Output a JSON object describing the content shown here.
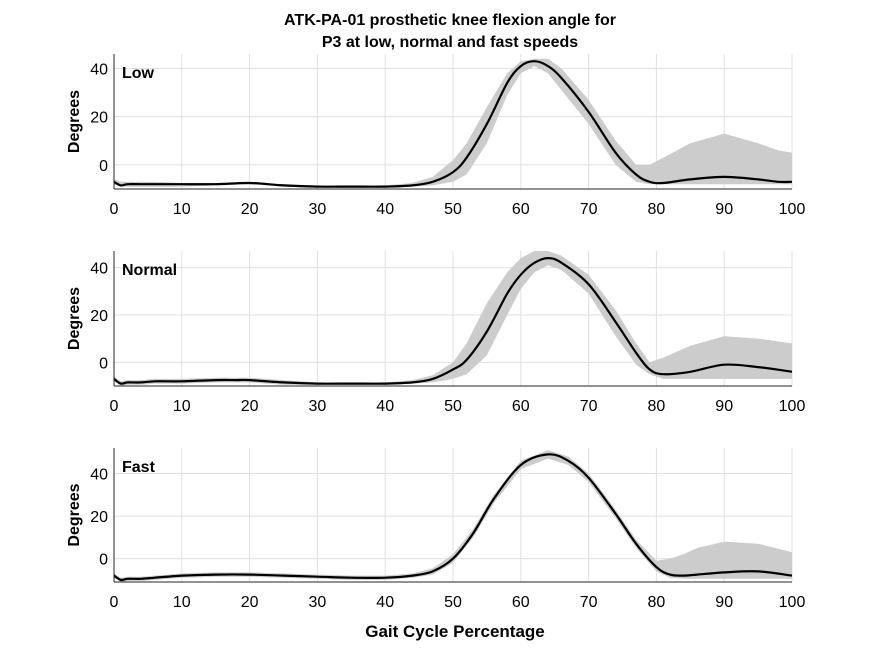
{
  "figure": {
    "title_lines": [
      "ATK-PA-01 prosthetic knee flexion angle for",
      "P3 at low, normal and fast speeds"
    ],
    "xlabel": "Gait Cycle Percentage"
  },
  "chart_data": [
    {
      "type": "line",
      "panel_label": "Low",
      "ylabel": "Degrees",
      "xlim": [
        0,
        100
      ],
      "ylim": [
        -10,
        46
      ],
      "xticks": [
        0,
        10,
        20,
        30,
        40,
        50,
        60,
        70,
        80,
        90,
        100
      ],
      "yticks": [
        0,
        20,
        40
      ],
      "grid": true,
      "x": [
        0,
        1,
        2,
        4,
        6,
        10,
        15,
        20,
        25,
        30,
        35,
        40,
        44,
        47,
        50,
        52,
        55,
        58,
        60,
        62,
        64,
        66,
        70,
        74,
        77,
        79,
        81,
        85,
        90,
        95,
        98,
        100
      ],
      "mean": [
        -7,
        -8.5,
        -8,
        -8,
        -8,
        -8,
        -8,
        -7.5,
        -8.5,
        -9,
        -9,
        -9,
        -8.5,
        -7,
        -3,
        3,
        17,
        34,
        41,
        43,
        41,
        36,
        22,
        5,
        -4,
        -7,
        -7.5,
        -6,
        -5,
        -6,
        -7,
        -7
      ],
      "upper": [
        -6,
        -7,
        -7,
        -7,
        -7,
        -7.5,
        -7.5,
        -7,
        -8,
        -8.5,
        -8.5,
        -8.5,
        -7.5,
        -5,
        2,
        9,
        24,
        38,
        43,
        44,
        44,
        40,
        27,
        10,
        0,
        0,
        3,
        9,
        13,
        9,
        6,
        5
      ],
      "lower": [
        -8,
        -9,
        -9,
        -9,
        -9,
        -9,
        -8.5,
        -8,
        -9,
        -9.5,
        -9.5,
        -9.5,
        -9,
        -8.5,
        -7,
        -4,
        9,
        29,
        38,
        41,
        38,
        31,
        17,
        0,
        -7,
        -8,
        -8,
        -8,
        -8,
        -8,
        -8,
        -8
      ]
    },
    {
      "type": "line",
      "panel_label": "Normal",
      "ylabel": "Degrees",
      "xlim": [
        0,
        100
      ],
      "ylim": [
        -10,
        47
      ],
      "xticks": [
        0,
        10,
        20,
        30,
        40,
        50,
        60,
        70,
        80,
        90,
        100
      ],
      "yticks": [
        0,
        20,
        40
      ],
      "grid": true,
      "x": [
        0,
        1,
        2,
        4,
        6,
        10,
        15,
        18,
        20,
        25,
        30,
        35,
        40,
        44,
        47,
        50,
        52,
        55,
        58,
        60,
        62,
        64,
        66,
        70,
        74,
        77,
        79,
        81,
        85,
        90,
        95,
        100
      ],
      "mean": [
        -7,
        -9,
        -8.5,
        -8.5,
        -8,
        -8,
        -7.5,
        -7.5,
        -7.5,
        -8.5,
        -9,
        -9,
        -9,
        -8.5,
        -7,
        -3,
        1,
        13,
        29,
        37,
        42,
        44,
        42,
        33,
        17,
        4,
        -3,
        -5,
        -4,
        -1,
        -2,
        -4
      ],
      "upper": [
        -6,
        -8,
        -7.5,
        -7.5,
        -7,
        -7,
        -6.5,
        -6.5,
        -6.5,
        -7.5,
        -8.5,
        -8.5,
        -8.5,
        -7.5,
        -5.5,
        0,
        8,
        25,
        38,
        44,
        47,
        47,
        45,
        37,
        22,
        8,
        0,
        2,
        7,
        11,
        10,
        8
      ],
      "lower": [
        -8,
        -10,
        -9.5,
        -9.5,
        -9,
        -9,
        -8.5,
        -8.5,
        -8.5,
        -9.5,
        -9.5,
        -9.5,
        -9.5,
        -9,
        -8.5,
        -7,
        -5,
        3,
        20,
        31,
        38,
        41,
        39,
        29,
        11,
        -1,
        -5,
        -7,
        -7,
        -7,
        -7,
        -7
      ]
    },
    {
      "type": "line",
      "panel_label": "Fast",
      "ylabel": "Degrees",
      "xlim": [
        0,
        100
      ],
      "ylim": [
        -11,
        52
      ],
      "xticks": [
        0,
        10,
        20,
        30,
        40,
        50,
        60,
        70,
        80,
        90,
        100
      ],
      "yticks": [
        0,
        20,
        40
      ],
      "grid": true,
      "x": [
        0,
        1,
        2,
        4,
        6,
        10,
        15,
        20,
        25,
        30,
        35,
        40,
        44,
        47,
        50,
        53,
        56,
        60,
        64,
        67,
        70,
        74,
        77,
        80,
        82,
        84,
        86,
        90,
        95,
        100
      ],
      "mean": [
        -8,
        -10,
        -9.5,
        -9.5,
        -9,
        -8,
        -7.5,
        -7.5,
        -8,
        -8.5,
        -9,
        -9,
        -8,
        -6,
        0,
        12,
        28,
        44,
        49,
        46,
        38,
        21,
        7,
        -4,
        -7.5,
        -8,
        -7.5,
        -6.5,
        -6,
        -8
      ],
      "upper": [
        -7,
        -9,
        -8.5,
        -8.5,
        -8,
        -7,
        -6.5,
        -6.5,
        -7,
        -7.5,
        -8,
        -8,
        -7,
        -4.5,
        2,
        14,
        30,
        46,
        51,
        48,
        40,
        23,
        9,
        -1,
        0,
        2,
        5,
        8,
        7,
        3
      ],
      "lower": [
        -9,
        -11,
        -10.5,
        -10.5,
        -10,
        -9,
        -8.5,
        -8.5,
        -9,
        -9.5,
        -10,
        -10,
        -9,
        -7.5,
        -2,
        10,
        26,
        42,
        47,
        44,
        36,
        19,
        5,
        -6,
        -9,
        -9.5,
        -9.5,
        -9.5,
        -9.5,
        -9.5
      ]
    }
  ],
  "colors": {
    "band": "#cccccc",
    "line": "#000000",
    "grid": "#e0e0e0",
    "axis": "#262626"
  }
}
